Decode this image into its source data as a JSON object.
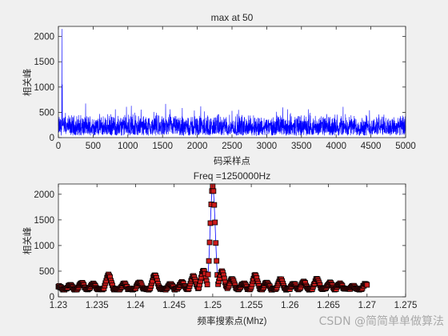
{
  "chart_data": [
    {
      "type": "line",
      "title": "max at 50",
      "xlabel": "码采样点",
      "ylabel": "相关峰",
      "xlim": [
        0,
        5000
      ],
      "ylim": [
        0,
        2200
      ],
      "xticks": [
        0,
        500,
        1000,
        1500,
        2000,
        2500,
        3000,
        3500,
        4000,
        4500,
        5000
      ],
      "yticks": [
        0,
        500,
        1000,
        1500,
        2000
      ],
      "grid": false,
      "series": [
        {
          "color": "#0000ff",
          "peak": {
            "x": 50,
            "y": 2150
          },
          "baseline_range": [
            0,
            650
          ],
          "spikes": [
            {
              "x": 55,
              "y": 1050
            },
            {
              "x": 820,
              "y": 560
            },
            {
              "x": 980,
              "y": 610
            },
            {
              "x": 1050,
              "y": 630
            },
            {
              "x": 1610,
              "y": 560
            },
            {
              "x": 2050,
              "y": 620
            },
            {
              "x": 2500,
              "y": 530
            },
            {
              "x": 3300,
              "y": 560
            },
            {
              "x": 4100,
              "y": 610
            },
            {
              "x": 4480,
              "y": 540
            }
          ]
        }
      ]
    },
    {
      "type": "line",
      "title": "Freq =1250000Hz",
      "xlabel": "频率搜索点(Mhz)",
      "ylabel": "相关峰",
      "xlim": [
        1.23,
        1.275
      ],
      "ylim": [
        0,
        2200
      ],
      "xticks": [
        "1.23",
        "1.235",
        "1.24",
        "1.245",
        "1.25",
        "1.255",
        "1.26",
        "1.265",
        "1.27",
        "1.275"
      ],
      "yticks": [
        0,
        500,
        1000,
        1500,
        2000
      ],
      "grid": false,
      "series": [
        {
          "color": "#0000ff",
          "marker": "square",
          "marker_face": "#cc1a1a",
          "marker_edge": "#000000",
          "x_start": 1.23,
          "x_end": 1.27,
          "step": 0.0001,
          "peak": {
            "x": 1.25,
            "y": 2150
          },
          "sidelobes": [
            {
              "x": 1.2301,
              "y": 200
            },
            {
              "x": 1.2315,
              "y": 230
            },
            {
              "x": 1.233,
              "y": 270
            },
            {
              "x": 1.2345,
              "y": 250
            },
            {
              "x": 1.2365,
              "y": 430
            },
            {
              "x": 1.2385,
              "y": 260
            },
            {
              "x": 1.2405,
              "y": 280
            },
            {
              "x": 1.2425,
              "y": 430
            },
            {
              "x": 1.2445,
              "y": 250
            },
            {
              "x": 1.246,
              "y": 280
            },
            {
              "x": 1.2475,
              "y": 400
            },
            {
              "x": 1.2488,
              "y": 510
            },
            {
              "x": 1.2512,
              "y": 500
            },
            {
              "x": 1.2525,
              "y": 350
            },
            {
              "x": 1.254,
              "y": 260
            },
            {
              "x": 1.2555,
              "y": 420
            },
            {
              "x": 1.257,
              "y": 280
            },
            {
              "x": 1.2588,
              "y": 350
            },
            {
              "x": 1.2605,
              "y": 260
            },
            {
              "x": 1.2618,
              "y": 290
            },
            {
              "x": 1.2635,
              "y": 350
            },
            {
              "x": 1.2652,
              "y": 280
            },
            {
              "x": 1.2665,
              "y": 260
            },
            {
              "x": 1.2682,
              "y": 210
            },
            {
              "x": 1.2698,
              "y": 250
            }
          ]
        }
      ]
    }
  ],
  "watermark": "CSDN @简简单单做算法"
}
